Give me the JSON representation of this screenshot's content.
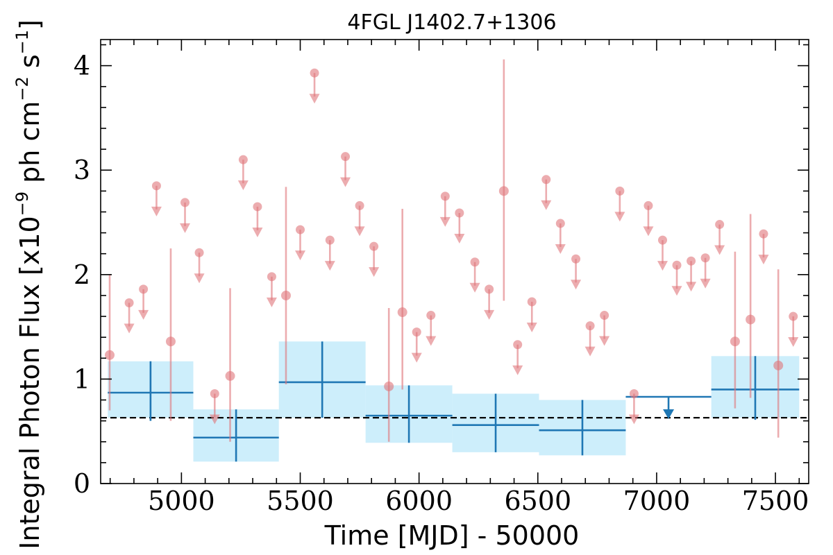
{
  "colors": {
    "weekly": "#e0747a",
    "binned": "#1f77b4",
    "binned_band": "#cdeefb",
    "average_line": "#000000"
  },
  "chart_data": {
    "type": "scatter",
    "title": "4FGL J1402.7+1306",
    "xlabel": "Time [MJD] - 50000",
    "ylabel": "Integral Photon Flux [x10^-9 ph cm^-2 s^-1]",
    "ylabel_parts": {
      "prefix": "Integral Photon Flux [x10",
      "exp1": "−9",
      "mid1": " ph cm",
      "exp2": "−2",
      "mid2": " s",
      "exp3": "−1",
      "suffix": "]"
    },
    "xlim": [
      4660,
      7640
    ],
    "ylim": [
      0,
      4.25
    ],
    "x_ticks": [
      5000,
      5500,
      6000,
      6500,
      7000,
      7500
    ],
    "x_tick_labels": [
      "5000",
      "5500",
      "6000",
      "6500",
      "7000",
      "7500"
    ],
    "y_ticks": [
      0,
      1,
      2,
      3,
      4
    ],
    "y_tick_labels": [
      "0",
      "1",
      "2",
      "3",
      "4"
    ],
    "average_flux": 0.63,
    "weekly_detections": [
      {
        "x": 4698,
        "y": 1.23,
        "lo": 0.7,
        "hi": 2.0
      },
      {
        "x": 4955,
        "y": 1.36,
        "lo": 0.6,
        "hi": 2.25
      },
      {
        "x": 5205,
        "y": 1.03,
        "lo": 0.4,
        "hi": 1.87
      },
      {
        "x": 5440,
        "y": 1.8,
        "lo": 0.95,
        "hi": 2.84
      },
      {
        "x": 5873,
        "y": 0.93,
        "lo": 0.4,
        "hi": 1.68
      },
      {
        "x": 5930,
        "y": 1.64,
        "lo": 0.9,
        "hi": 2.63
      },
      {
        "x": 6357,
        "y": 2.8,
        "lo": 1.75,
        "hi": 4.06
      },
      {
        "x": 7330,
        "y": 1.36,
        "lo": 0.72,
        "hi": 2.22
      },
      {
        "x": 7395,
        "y": 1.57,
        "lo": 0.82,
        "hi": 2.58
      },
      {
        "x": 7512,
        "y": 1.13,
        "lo": 0.44,
        "hi": 2.05
      }
    ],
    "weekly_upper_limits": [
      {
        "x": 4780,
        "y": 1.73
      },
      {
        "x": 4840,
        "y": 1.86
      },
      {
        "x": 4895,
        "y": 2.85
      },
      {
        "x": 5015,
        "y": 2.69
      },
      {
        "x": 5075,
        "y": 2.21
      },
      {
        "x": 5140,
        "y": 0.86
      },
      {
        "x": 5260,
        "y": 3.1
      },
      {
        "x": 5320,
        "y": 2.65
      },
      {
        "x": 5380,
        "y": 1.98
      },
      {
        "x": 5500,
        "y": 2.43
      },
      {
        "x": 5560,
        "y": 3.93
      },
      {
        "x": 5625,
        "y": 2.33
      },
      {
        "x": 5690,
        "y": 3.13
      },
      {
        "x": 5750,
        "y": 2.66
      },
      {
        "x": 5810,
        "y": 2.27
      },
      {
        "x": 5990,
        "y": 1.45
      },
      {
        "x": 6050,
        "y": 1.61
      },
      {
        "x": 6110,
        "y": 2.75
      },
      {
        "x": 6170,
        "y": 2.59
      },
      {
        "x": 6235,
        "y": 2.12
      },
      {
        "x": 6295,
        "y": 1.86
      },
      {
        "x": 6415,
        "y": 1.33
      },
      {
        "x": 6475,
        "y": 1.74
      },
      {
        "x": 6535,
        "y": 2.91
      },
      {
        "x": 6595,
        "y": 2.49
      },
      {
        "x": 6660,
        "y": 2.15
      },
      {
        "x": 6720,
        "y": 1.51
      },
      {
        "x": 6780,
        "y": 1.61
      },
      {
        "x": 6845,
        "y": 2.8
      },
      {
        "x": 6905,
        "y": 0.86
      },
      {
        "x": 6965,
        "y": 2.66
      },
      {
        "x": 7025,
        "y": 2.33
      },
      {
        "x": 7085,
        "y": 2.09
      },
      {
        "x": 7145,
        "y": 2.13
      },
      {
        "x": 7205,
        "y": 2.16
      },
      {
        "x": 7265,
        "y": 2.48
      },
      {
        "x": 7450,
        "y": 2.39
      },
      {
        "x": 7575,
        "y": 1.6
      }
    ],
    "binned_detections": [
      {
        "x0": 4690,
        "x1": 5050,
        "y": 0.87,
        "lo": 0.6,
        "hi": 1.17,
        "band_lo": 0.63,
        "band_hi": 1.17
      },
      {
        "x0": 5050,
        "x1": 5410,
        "y": 0.44,
        "lo": 0.21,
        "hi": 0.71,
        "band_lo": 0.21,
        "band_hi": 0.71
      },
      {
        "x0": 5410,
        "x1": 5775,
        "y": 0.97,
        "lo": 0.63,
        "hi": 1.36,
        "band_lo": 0.63,
        "band_hi": 1.36
      },
      {
        "x0": 5775,
        "x1": 6140,
        "y": 0.65,
        "lo": 0.39,
        "hi": 0.94,
        "band_lo": 0.39,
        "band_hi": 0.94
      },
      {
        "x0": 6140,
        "x1": 6505,
        "y": 0.56,
        "lo": 0.3,
        "hi": 0.86,
        "band_lo": 0.3,
        "band_hi": 0.86
      },
      {
        "x0": 6505,
        "x1": 6870,
        "y": 0.51,
        "lo": 0.27,
        "hi": 0.8,
        "band_lo": 0.27,
        "band_hi": 0.8
      },
      {
        "x0": 7230,
        "x1": 7600,
        "y": 0.9,
        "lo": 0.61,
        "hi": 1.22,
        "band_lo": 0.63,
        "band_hi": 1.22
      }
    ],
    "binned_upper_limits": [
      {
        "x0": 6870,
        "x1": 7230,
        "y": 0.83
      }
    ]
  }
}
